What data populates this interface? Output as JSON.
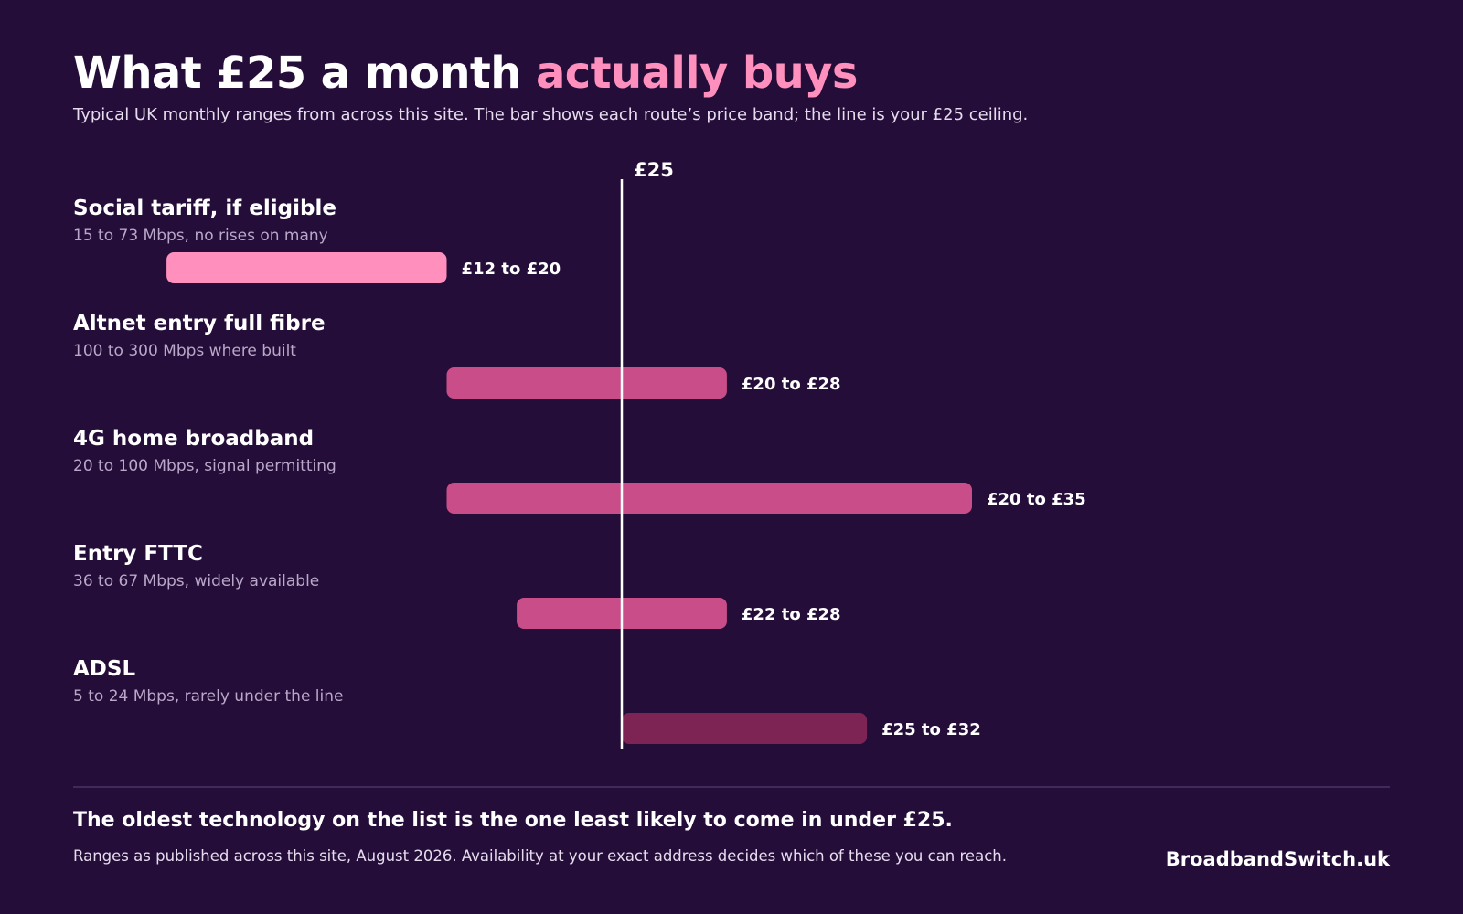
{
  "header": {
    "title_main": "What £25 a month ",
    "title_accent": "actually buys",
    "subtitle": "Typical UK monthly ranges from across this site.  The bar shows each route’s price band; the line is your £25 ceiling."
  },
  "chart_data": {
    "type": "bar",
    "orientation": "horizontal-range",
    "unit": "£ per month",
    "reference_line": {
      "value": 25,
      "label": "£25"
    },
    "categories": [
      "Social tariff, if eligible",
      "Altnet entry full fibre",
      "4G home broadband",
      "Entry FTTC",
      "ADSL"
    ],
    "rows": [
      {
        "label": "Social tariff, if eligible",
        "description": "15 to 73 Mbps, no rises on many",
        "min": 12,
        "max": 20,
        "range_label": "£12 to £20",
        "color": "#ff8fbd"
      },
      {
        "label": "Altnet entry full fibre",
        "description": "100 to 300 Mbps where built",
        "min": 20,
        "max": 28,
        "range_label": "£20 to £28",
        "color": "#c94d88"
      },
      {
        "label": "4G home broadband",
        "description": "20 to 100 Mbps, signal permitting",
        "min": 20,
        "max": 35,
        "range_label": "£20 to £35",
        "color": "#c94d88"
      },
      {
        "label": "Entry FTTC",
        "description": "36 to 67 Mbps, widely available",
        "min": 22,
        "max": 28,
        "range_label": "£22 to £28",
        "color": "#c94d88"
      },
      {
        "label": "ADSL",
        "description": "5 to 24 Mbps, rarely under the line",
        "min": 25,
        "max": 32,
        "range_label": "£25 to £32",
        "color": "#7e2455"
      }
    ],
    "reference_color": "#ffffff"
  },
  "footer": {
    "takeaway": "The oldest technology on the list is the one least likely to come in under £25.",
    "note": "Ranges as published across this site, August 2026.  Availability at your exact address decides which of these you can reach.",
    "brand": "BroadbandSwitch.uk"
  }
}
